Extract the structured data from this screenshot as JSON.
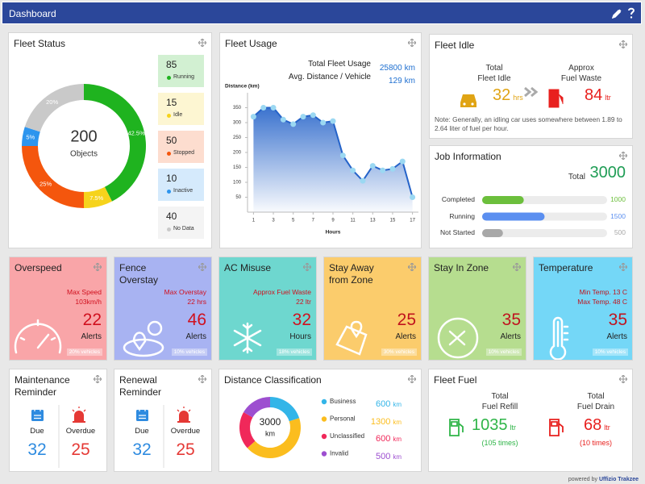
{
  "header": {
    "title": "Dashboard"
  },
  "chart_data": [
    {
      "type": "donut",
      "title": "Fleet Status",
      "center_value": 200,
      "center_label": "Objects",
      "categories": [
        "Running",
        "Idle",
        "Stopped",
        "Inactive",
        "No Data"
      ],
      "counts": [
        85,
        15,
        50,
        10,
        40
      ],
      "values": [
        42.5,
        7.5,
        25,
        5,
        20
      ],
      "value_labels": [
        "42.5%",
        "7.5%",
        "25%",
        "5%",
        "20%"
      ],
      "colors": [
        "#1fb31f",
        "#f6d31c",
        "#f4560d",
        "#2d95ee",
        "#c9c9c9"
      ]
    },
    {
      "type": "line",
      "title": "Fleet Usage",
      "stats": [
        {
          "label": "Total Fleet Usage",
          "value": 25800,
          "unit": "km"
        },
        {
          "label": "Avg. Distance / Vehicle",
          "value": 129,
          "unit": "km"
        }
      ],
      "y_label": "Distance (km)",
      "x_label": "Hours",
      "x": [
        1,
        2,
        3,
        4,
        5,
        6,
        7,
        8,
        9,
        10,
        11,
        12,
        13,
        14,
        15,
        16,
        17
      ],
      "values": [
        320,
        350,
        350,
        310,
        295,
        320,
        325,
        300,
        305,
        190,
        140,
        105,
        155,
        140,
        145,
        170,
        50
      ],
      "color": "#2563c9",
      "marker_color": "#9bd8f2",
      "xlim": [
        0.4,
        17.6
      ],
      "xticks": [
        1,
        3,
        5,
        7,
        9,
        11,
        13,
        15,
        17
      ],
      "ylim": [
        0,
        400
      ],
      "yticks": [
        50,
        100,
        150,
        200,
        250,
        300,
        350
      ],
      "grid": false
    },
    {
      "type": "donut",
      "title": "Distance Classification",
      "center_value": 3000,
      "unit": "km",
      "categories": [
        "Business",
        "Personal",
        "Unclassified",
        "Invalid"
      ],
      "values": [
        600,
        1300,
        600,
        500
      ],
      "colors": [
        "#33b5e8",
        "#fbbd1e",
        "#f0285a",
        "#9d4fd0"
      ]
    }
  ],
  "fleet_idle": {
    "title": "Fleet Idle",
    "idle": {
      "label": [
        "Total",
        "Fleet Idle"
      ],
      "value": 32,
      "unit": "hrs",
      "color": "#e0a414"
    },
    "waste": {
      "label": [
        "Approx",
        "Fuel Waste"
      ],
      "value": 84,
      "unit": "ltr",
      "color": "#e8201e"
    },
    "note": "Note: Generally, an idling car uses somewhere between 1.89 to 2.64 liter of fuel per hour."
  },
  "job_information": {
    "title": "Job Information",
    "total_label": "Total",
    "total": 3000,
    "rows": [
      {
        "label": "Completed",
        "value": 1000,
        "color": "#6cbf3c"
      },
      {
        "label": "Running",
        "value": 1500,
        "color": "#5b8ff0"
      },
      {
        "label": "Not Started",
        "value": 500,
        "color": "#a8a8a8"
      }
    ]
  },
  "alerts": [
    {
      "title": "Overspeed",
      "details": [
        "Max Speed",
        "103km/h"
      ],
      "count": 22,
      "count_label": "Alerts",
      "badge": "20% vehicles",
      "color": "#f9a5a8",
      "accent": "#d0101e"
    },
    {
      "title": "Fence Overstay",
      "details": [
        "Max Overstay",
        "22 hrs"
      ],
      "count": 46,
      "count_label": "Alerts",
      "badge": "10% vehicles",
      "color": "#a8b3f2",
      "accent": "#d0101e"
    },
    {
      "title": "AC Misuse",
      "details": [
        "Approx Fuel Waste",
        "22 ltr"
      ],
      "count": 32,
      "count_label": "Hours",
      "badge": "18% vehicles",
      "color": "#6ed7cf",
      "accent": "#d0101e"
    },
    {
      "title": "Stay Away from Zone",
      "count": 25,
      "count_label": "Alerts",
      "badge": "30% vehicles",
      "color": "#fbcc6c",
      "accent": "#c0141e"
    },
    {
      "title": "Stay In Zone",
      "count": 35,
      "count_label": "Alerts",
      "badge": "10% vehicles",
      "color": "#b6dd8f",
      "accent": "#c0141e"
    },
    {
      "title": "Temperature",
      "details": [
        "Min Temp. 13 C",
        "Max Temp. 48 C"
      ],
      "count": 35,
      "count_label": "Alerts",
      "badge": "10% vehicles",
      "color": "#74d7f7",
      "accent": "#c0141e"
    }
  ],
  "reminders": [
    {
      "title": "Maintenance Reminder",
      "due_label": "Due",
      "due": 32,
      "overdue_label": "Overdue",
      "overdue": 25
    },
    {
      "title": "Renewal Reminder",
      "due_label": "Due",
      "due": 32,
      "overdue_label": "Overdue",
      "overdue": 25
    }
  ],
  "fleet_fuel": {
    "title": "Fleet Fuel",
    "refill": {
      "label": [
        "Total",
        "Fuel Refill"
      ],
      "value": 1035,
      "unit": "ltr",
      "times": "(105 times)",
      "color": "#2fb548"
    },
    "drain": {
      "label": [
        "Total",
        "Fuel Drain"
      ],
      "value": 68,
      "unit": "ltr",
      "times": "(10 times)",
      "color": "#e8201e"
    }
  },
  "footer": {
    "prefix": "powered by",
    "brand": "Uffizio Trakzee"
  }
}
